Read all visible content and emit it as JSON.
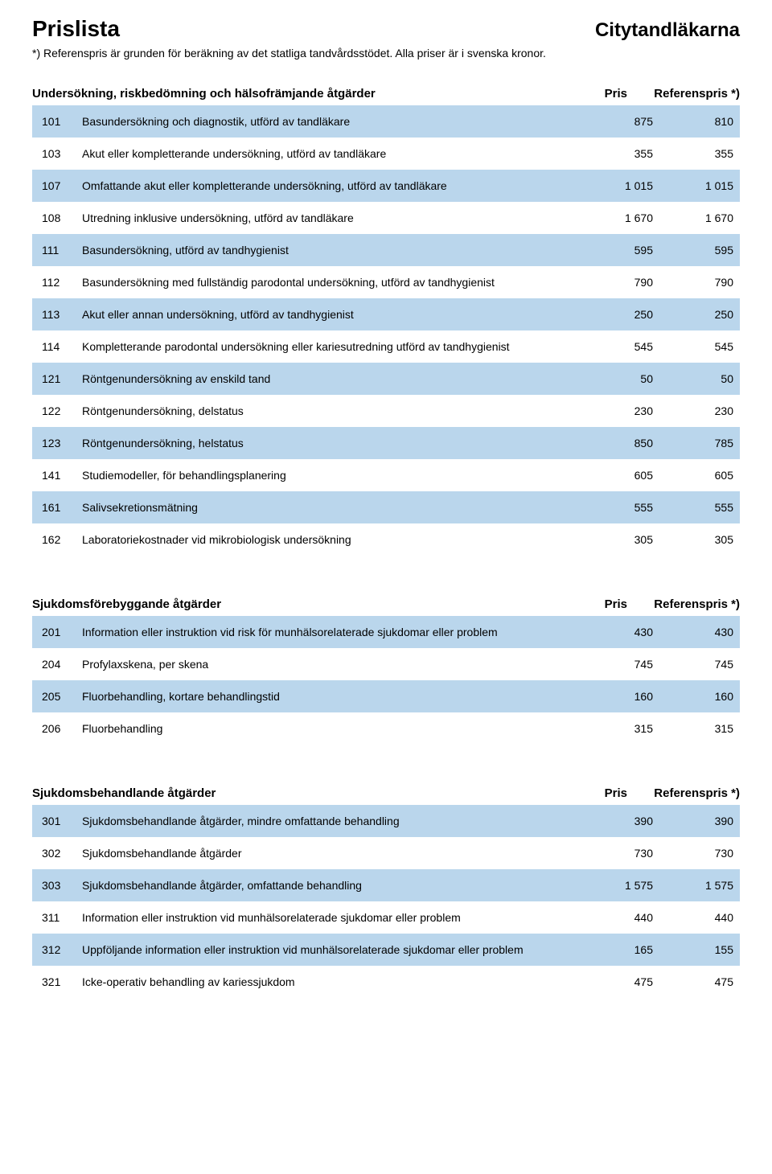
{
  "page": {
    "title_left": "Prislista",
    "title_right": "Citytandläkarna",
    "subtitle": "*) Referenspris är grunden för beräkning av det statliga tandvårdsstödet. Alla priser är i svenska kronor."
  },
  "styles": {
    "row_bg_even": "#bad6ec",
    "row_bg_odd": "#ffffff",
    "font_family": "Arial, Helvetica, sans-serif",
    "title_fontsize": 28,
    "brand_fontsize": 24,
    "body_fontsize": 14,
    "header_fontsize": 15,
    "text_color": "#000000",
    "page_bg": "#ffffff"
  },
  "columns": {
    "pris_label": "Pris",
    "ref_label": "Referenspris *)"
  },
  "sections": [
    {
      "title": "Undersökning, riskbedömning och hälsofrämjande åtgärder",
      "rows": [
        {
          "code": "101",
          "desc": "Basundersökning och diagnostik, utförd av tandläkare",
          "pris": "875",
          "ref": "810"
        },
        {
          "code": "103",
          "desc": "Akut eller kompletterande undersökning, utförd av tandläkare",
          "pris": "355",
          "ref": "355"
        },
        {
          "code": "107",
          "desc": "Omfattande akut eller kompletterande undersökning, utförd av tandläkare",
          "pris": "1 015",
          "ref": "1 015"
        },
        {
          "code": "108",
          "desc": "Utredning inklusive undersökning, utförd av tandläkare",
          "pris": "1 670",
          "ref": "1 670"
        },
        {
          "code": "111",
          "desc": "Basundersökning, utförd av tandhygienist",
          "pris": "595",
          "ref": "595"
        },
        {
          "code": "112",
          "desc": "Basundersökning med fullständig parodontal undersökning, utförd av tandhygienist",
          "pris": "790",
          "ref": "790"
        },
        {
          "code": "113",
          "desc": "Akut eller annan undersökning, utförd av tandhygienist",
          "pris": "250",
          "ref": "250"
        },
        {
          "code": "114",
          "desc": "Kompletterande parodontal undersökning eller kariesutredning utförd av tandhygienist",
          "pris": "545",
          "ref": "545"
        },
        {
          "code": "121",
          "desc": "Röntgenundersökning av enskild tand",
          "pris": "50",
          "ref": "50"
        },
        {
          "code": "122",
          "desc": "Röntgenundersökning, delstatus",
          "pris": "230",
          "ref": "230"
        },
        {
          "code": "123",
          "desc": "Röntgenundersökning, helstatus",
          "pris": "850",
          "ref": "785"
        },
        {
          "code": "141",
          "desc": "Studiemodeller, för behandlingsplanering",
          "pris": "605",
          "ref": "605"
        },
        {
          "code": "161",
          "desc": "Salivsekretionsmätning",
          "pris": "555",
          "ref": "555"
        },
        {
          "code": "162",
          "desc": "Laboratoriekostnader vid mikrobiologisk undersökning",
          "pris": "305",
          "ref": "305"
        }
      ]
    },
    {
      "title": "Sjukdomsförebyggande åtgärder",
      "rows": [
        {
          "code": "201",
          "desc": "Information eller instruktion vid risk för munhälsorelaterade sjukdomar eller problem",
          "pris": "430",
          "ref": "430"
        },
        {
          "code": "204",
          "desc": "Profylaxskena, per skena",
          "pris": "745",
          "ref": "745"
        },
        {
          "code": "205",
          "desc": "Fluorbehandling, kortare behandlingstid",
          "pris": "160",
          "ref": "160"
        },
        {
          "code": "206",
          "desc": "Fluorbehandling",
          "pris": "315",
          "ref": "315"
        }
      ]
    },
    {
      "title": "Sjukdomsbehandlande åtgärder",
      "rows": [
        {
          "code": "301",
          "desc": "Sjukdomsbehandlande åtgärder, mindre omfattande behandling",
          "pris": "390",
          "ref": "390"
        },
        {
          "code": "302",
          "desc": "Sjukdomsbehandlande åtgärder",
          "pris": "730",
          "ref": "730"
        },
        {
          "code": "303",
          "desc": "Sjukdomsbehandlande åtgärder, omfattande behandling",
          "pris": "1 575",
          "ref": "1 575"
        },
        {
          "code": "311",
          "desc": "Information eller instruktion vid munhälsorelaterade sjukdomar eller problem",
          "pris": "440",
          "ref": "440"
        },
        {
          "code": "312",
          "desc": "Uppföljande information eller instruktion vid munhälsorelaterade sjukdomar eller problem",
          "pris": "165",
          "ref": "155"
        },
        {
          "code": "321",
          "desc": "Icke-operativ behandling av kariessjukdom",
          "pris": "475",
          "ref": "475"
        }
      ]
    }
  ]
}
